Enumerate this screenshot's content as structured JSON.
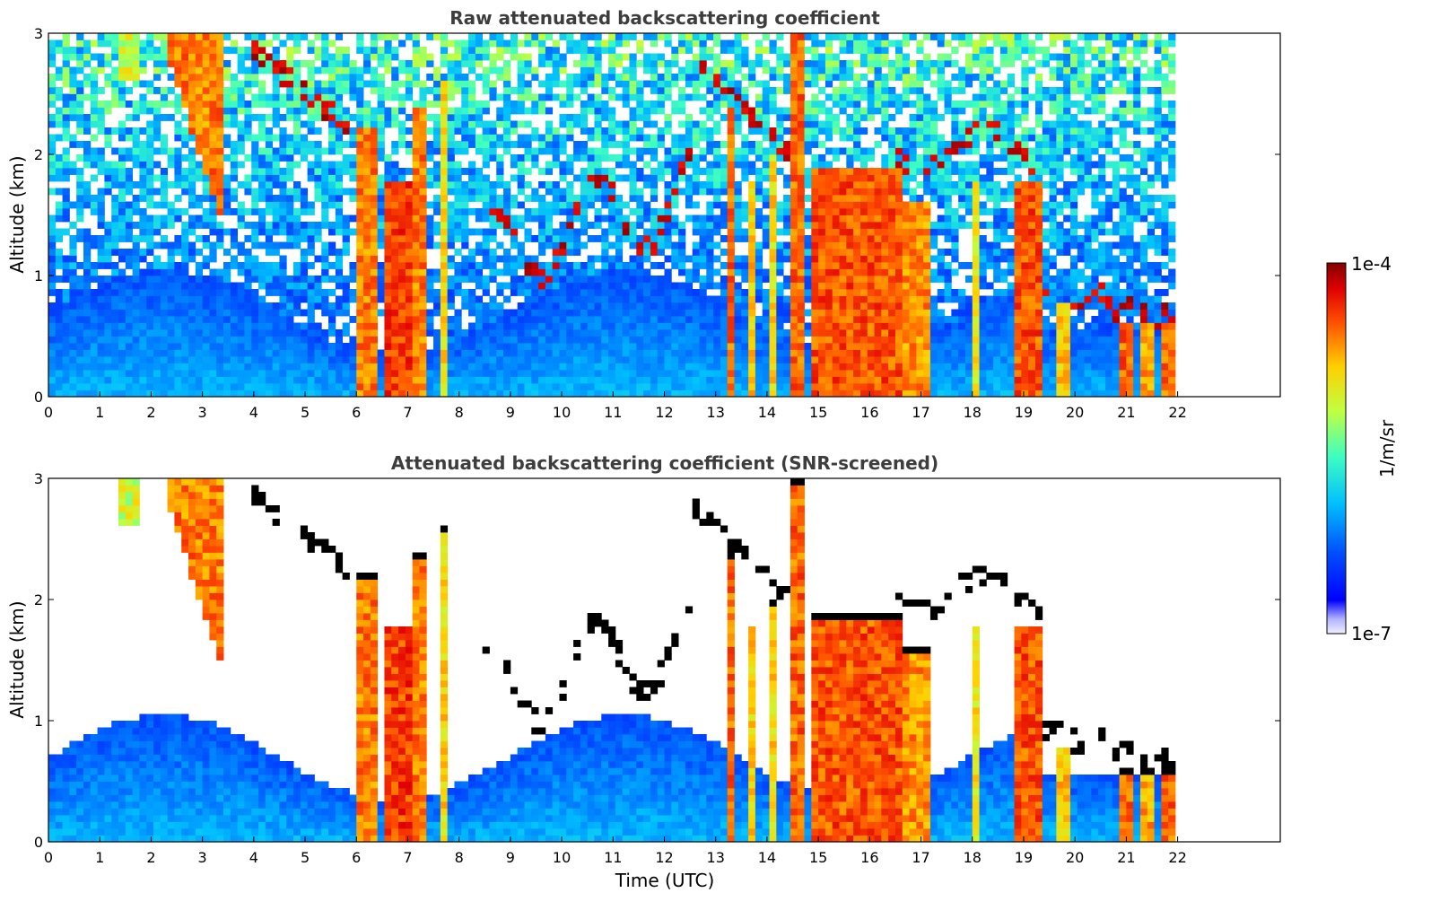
{
  "chart_data": [
    {
      "type": "heatmap",
      "title": "Raw attenuated backscattering coefficient",
      "xlabel": "",
      "ylabel": "Altitude (km)",
      "xlim": [
        0,
        24
      ],
      "ylim": [
        0,
        3
      ],
      "x_ticks": [
        "0",
        "1",
        "2",
        "3",
        "4",
        "5",
        "6",
        "7",
        "8",
        "9",
        "10",
        "11",
        "12",
        "13",
        "14",
        "15",
        "16",
        "17",
        "18",
        "19",
        "20",
        "21",
        "22"
      ],
      "y_ticks": [
        "0",
        "1",
        "2",
        "3"
      ],
      "data_end_hour": 22,
      "screened": false
    },
    {
      "type": "heatmap",
      "title": "Attenuated backscattering coefficient (SNR-screened)",
      "xlabel": "Time (UTC)",
      "ylabel": "Altitude (km)",
      "xlim": [
        0,
        24
      ],
      "ylim": [
        0,
        3
      ],
      "x_ticks": [
        "0",
        "1",
        "2",
        "3",
        "4",
        "5",
        "6",
        "7",
        "8",
        "9",
        "10",
        "11",
        "12",
        "13",
        "14",
        "15",
        "16",
        "17",
        "18",
        "19",
        "20",
        "21",
        "22"
      ],
      "y_ticks": [
        "0",
        "1",
        "2",
        "3"
      ],
      "data_end_hour": 22,
      "screened": true
    }
  ],
  "colorbar": {
    "label": "1/m/sr",
    "max_label": "1e-4",
    "min_label": "1e-7",
    "scale": "log",
    "colormap": "jet",
    "min": 1e-07,
    "max": 0.0001
  }
}
